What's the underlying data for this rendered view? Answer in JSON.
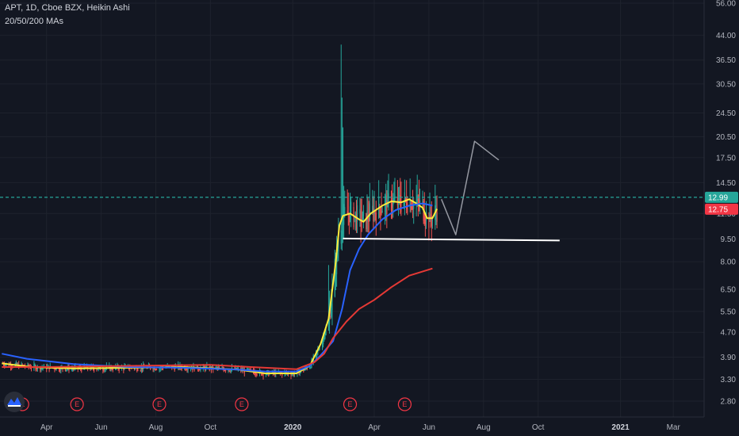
{
  "header": {
    "symbol_line": "APT, 1D, Cboe BZX, Heikin Ashi",
    "indicator_line": "20/50/200 MAs"
  },
  "colors": {
    "background": "#131722",
    "up_candle": "#26a69a",
    "down_candle": "#ef5350",
    "ma20": "#ffeb3b",
    "ma50": "#2962ff",
    "ma200": "#e53935",
    "price_line": "#26a69a",
    "support_line": "#ffffff",
    "forecast_line": "#9598a1",
    "event_marker": "#f23645"
  },
  "chart_data": {
    "type": "line",
    "y_scale": "log",
    "price_axis_ticks": [
      "56.00",
      "44.00",
      "36.50",
      "30.50",
      "24.50",
      "20.50",
      "17.50",
      "14.50",
      "11.50",
      "9.50",
      "8.00",
      "6.50",
      "5.50",
      "4.70",
      "3.90",
      "3.30",
      "2.80"
    ],
    "time_axis_ticks": [
      {
        "label": "Apr",
        "bold": false
      },
      {
        "label": "Jun",
        "bold": false
      },
      {
        "label": "Aug",
        "bold": false
      },
      {
        "label": "Oct",
        "bold": false
      },
      {
        "label": "2020",
        "bold": true
      },
      {
        "label": "Apr",
        "bold": false
      },
      {
        "label": "Jun",
        "bold": false
      },
      {
        "label": "Aug",
        "bold": false
      },
      {
        "label": "Oct",
        "bold": false
      },
      {
        "label": "2021",
        "bold": true
      },
      {
        "label": "Mar",
        "bold": false
      }
    ],
    "time_axis_span": [
      "2019-02-08",
      "2021-04-15"
    ],
    "price_badges": [
      {
        "label": "12.99",
        "value": 12.99,
        "color": "#26a69a"
      },
      {
        "label": "12.75",
        "value": 12.75,
        "color": "#f23645"
      }
    ],
    "earnings_markers": {
      "label": "E",
      "dates": [
        "2019-03-05",
        "2019-05-05",
        "2019-08-05",
        "2019-11-05",
        "2020-03-05",
        "2020-05-05"
      ]
    },
    "series": [
      {
        "kind": "ma20",
        "points": [
          [
            "2019-02-10",
            3.72
          ],
          [
            "2019-03-15",
            3.62
          ],
          [
            "2019-05-01",
            3.58
          ],
          [
            "2019-07-01",
            3.6
          ],
          [
            "2019-09-01",
            3.62
          ],
          [
            "2019-11-01",
            3.55
          ],
          [
            "2019-12-01",
            3.45
          ],
          [
            "2020-01-05",
            3.45
          ],
          [
            "2020-01-20",
            3.65
          ],
          [
            "2020-02-01",
            4.3
          ],
          [
            "2020-02-10",
            5.2
          ],
          [
            "2020-02-18",
            8.0
          ],
          [
            "2020-02-22",
            10.5
          ],
          [
            "2020-02-26",
            11.3
          ],
          [
            "2020-03-05",
            11.5
          ],
          [
            "2020-03-15",
            11.0
          ],
          [
            "2020-03-20",
            10.8
          ],
          [
            "2020-03-28",
            11.5
          ],
          [
            "2020-04-10",
            12.2
          ],
          [
            "2020-04-20",
            12.6
          ],
          [
            "2020-05-01",
            12.5
          ],
          [
            "2020-05-10",
            12.8
          ],
          [
            "2020-05-18",
            12.4
          ],
          [
            "2020-05-25",
            12.0
          ],
          [
            "2020-05-30",
            11.1
          ],
          [
            "2020-06-05",
            11.1
          ],
          [
            "2020-06-10",
            11.9
          ]
        ]
      },
      {
        "kind": "ma50",
        "points": [
          [
            "2019-02-10",
            4.0
          ],
          [
            "2019-03-10",
            3.85
          ],
          [
            "2019-05-01",
            3.7
          ],
          [
            "2019-07-01",
            3.62
          ],
          [
            "2019-09-01",
            3.6
          ],
          [
            "2019-11-01",
            3.55
          ],
          [
            "2019-12-01",
            3.5
          ],
          [
            "2020-01-05",
            3.5
          ],
          [
            "2020-01-20",
            3.65
          ],
          [
            "2020-02-01",
            3.95
          ],
          [
            "2020-02-15",
            4.4
          ],
          [
            "2020-02-25",
            5.6
          ],
          [
            "2020-03-05",
            7.5
          ],
          [
            "2020-03-15",
            8.8
          ],
          [
            "2020-03-25",
            9.8
          ],
          [
            "2020-04-10",
            11.0
          ],
          [
            "2020-04-25",
            11.8
          ],
          [
            "2020-05-10",
            12.2
          ],
          [
            "2020-05-25",
            12.4
          ],
          [
            "2020-06-05",
            12.2
          ]
        ]
      },
      {
        "kind": "ma200",
        "points": [
          [
            "2019-02-10",
            3.62
          ],
          [
            "2019-04-01",
            3.62
          ],
          [
            "2019-08-01",
            3.66
          ],
          [
            "2019-10-01",
            3.68
          ],
          [
            "2019-11-15",
            3.62
          ],
          [
            "2020-01-05",
            3.56
          ],
          [
            "2020-01-25",
            3.75
          ],
          [
            "2020-02-05",
            4.0
          ],
          [
            "2020-02-15",
            4.5
          ],
          [
            "2020-03-01",
            5.1
          ],
          [
            "2020-03-15",
            5.6
          ],
          [
            "2020-04-01",
            6.0
          ],
          [
            "2020-04-20",
            6.6
          ],
          [
            "2020-05-10",
            7.2
          ],
          [
            "2020-06-05",
            7.6
          ]
        ]
      },
      {
        "kind": "forecast",
        "points": [
          [
            "2020-06-15",
            12.8
          ],
          [
            "2020-07-01",
            9.8
          ],
          [
            "2020-07-22",
            19.8
          ],
          [
            "2020-08-18",
            17.2
          ]
        ]
      },
      {
        "kind": "support",
        "points": [
          [
            "2020-02-26",
            9.52
          ],
          [
            "2020-10-25",
            9.38
          ]
        ]
      }
    ]
  }
}
